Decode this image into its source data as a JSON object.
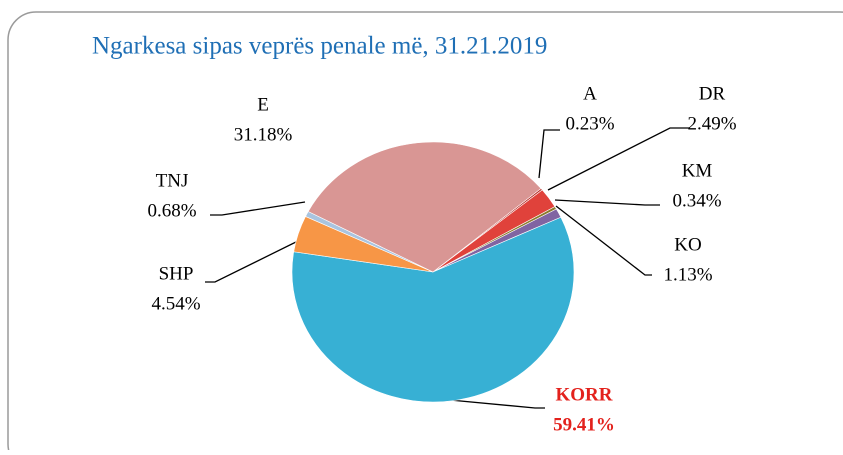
{
  "chart_data": {
    "type": "pie",
    "title": "Ngarkesa sipas veprës penale më, 31.21.2019",
    "categories": [
      "A",
      "DR",
      "KM",
      "KO",
      "KORR",
      "SHP",
      "TNJ",
      "E"
    ],
    "values": [
      0.23,
      2.49,
      0.34,
      1.13,
      59.41,
      4.54,
      0.68,
      31.18
    ],
    "value_labels": [
      "0.23%",
      "2.49%",
      "0.34%",
      "1.13%",
      "59.41%",
      "4.54%",
      "0.68%",
      "31.18%"
    ],
    "colors": [
      "#b8312a",
      "#e0423b",
      "#8a7a2c",
      "#8064a2",
      "#37b0d4",
      "#f79646",
      "#a9c4e0",
      "#d99694"
    ]
  }
}
